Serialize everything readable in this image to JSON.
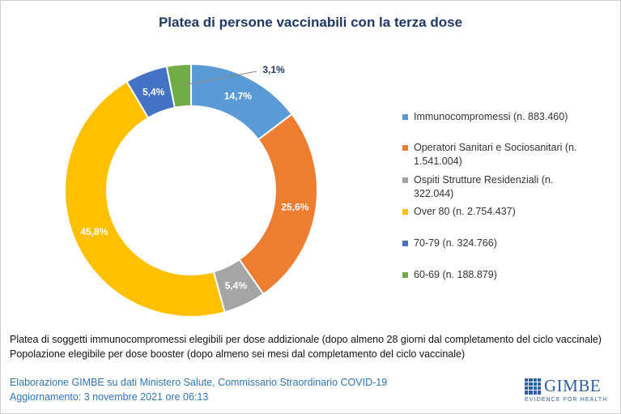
{
  "title": "Platea di persone vaccinabili con la terza dose",
  "chart_data": {
    "type": "pie",
    "title": "Platea di persone vaccinabili con la terza dose",
    "categories": [
      "Immunocompromessi (n. 883.460)",
      "Operatori Sanitari e Sociosanitari (n. 1.541.004)",
      "Ospiti Strutture Residenziali (n. 322.044)",
      "Over 80 (n. 2.754.437)",
      "70-79 (n. 324.766)",
      "60-69 (n. 188.879)"
    ],
    "values": [
      14.7,
      25.6,
      5.4,
      45.8,
      5.4,
      3.1
    ],
    "data_labels": [
      "14,7%",
      "25,6%",
      "5,4%",
      "45,8%",
      "5,4%",
      "3,1%"
    ],
    "colors": [
      "#5b9bd5",
      "#ed7d31",
      "#a5a5a5",
      "#ffc000",
      "#4472c4",
      "#70ad47"
    ],
    "hole": "donut",
    "legend_position": "right"
  },
  "notes": [
    "Platea di soggetti immunocompromessi  elegibili per dose addizionale (dopo almeno 28 giorni dal completamento del ciclo vaccinale)",
    "Popolazione elegibile per dose booster (dopo almeno sei mesi dal completamento del ciclo vaccinale)"
  ],
  "source": "Elaborazione GIMBE su dati Ministero Salute, Commissario Straordinario  COVID-19",
  "updated": "Aggiornamento:  3 novembre  2021 ore 06:13",
  "logo": {
    "name": "GIMBE",
    "tagline": "EVIDENCE FOR HEALTH"
  }
}
